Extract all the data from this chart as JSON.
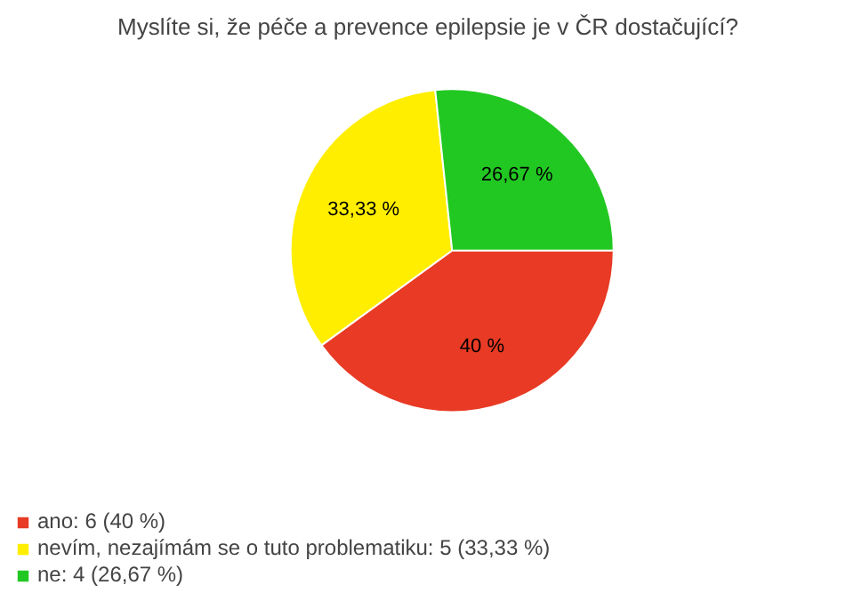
{
  "chart_data": {
    "type": "pie",
    "title": "Myslíte si, že péče a prevence epilepsie je v ČR dostačující?",
    "categories": [
      "ano: 6 (40 %)",
      "nevím, nezajímám se o tuto problematiku: 5 (33,33 %)",
      "ne: 4 (26,67 %)"
    ],
    "values": [
      40,
      33.33,
      26.67
    ],
    "value_labels": [
      "40 %",
      "33,33 %",
      "26,67 %"
    ],
    "colors": [
      "#e83a24",
      "#ffee00",
      "#22c822"
    ],
    "legend": "bottom left"
  }
}
